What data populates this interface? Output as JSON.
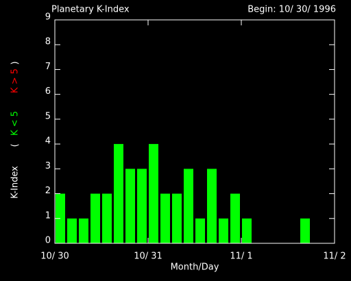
{
  "chart_data": {
    "type": "bar",
    "title": "Planetary K-Index",
    "subtitle": "Begin: 10/ 30/ 1996",
    "x_label": "Month/Day",
    "y_label": "K-Index",
    "legend_brackets": [
      "(",
      ")"
    ],
    "x": [
      0,
      3,
      6,
      9,
      12,
      15,
      18,
      21,
      24,
      27,
      30,
      33,
      36,
      39,
      42,
      45,
      48,
      51,
      54,
      57,
      60,
      63,
      66,
      69
    ],
    "series": [
      {
        "name": "K < 5",
        "color": "#00ff00",
        "values": [
          2,
          1,
          1,
          2,
          2,
          4,
          3,
          3,
          4,
          2,
          2,
          3,
          1,
          3,
          1,
          2,
          1,
          null,
          null,
          null,
          null,
          1,
          null,
          null
        ]
      },
      {
        "name": "K > 5",
        "color": "#ff0000",
        "values": [
          null,
          null,
          null,
          null,
          null,
          null,
          null,
          null,
          null,
          null,
          null,
          null,
          null,
          null,
          null,
          null,
          null,
          null,
          null,
          null,
          null,
          null,
          null,
          null
        ]
      }
    ],
    "xlim": [
      0,
      72
    ],
    "xticks": [
      {
        "value": 0,
        "label": "10/ 30"
      },
      {
        "value": 24,
        "label": "10/ 31"
      },
      {
        "value": 48,
        "label": "11/ 1"
      },
      {
        "value": 72,
        "label": "11/ 2"
      }
    ],
    "ylim": [
      0,
      9
    ],
    "yticks": [
      0,
      1,
      2,
      3,
      4,
      5,
      6,
      7,
      8,
      9
    ]
  }
}
